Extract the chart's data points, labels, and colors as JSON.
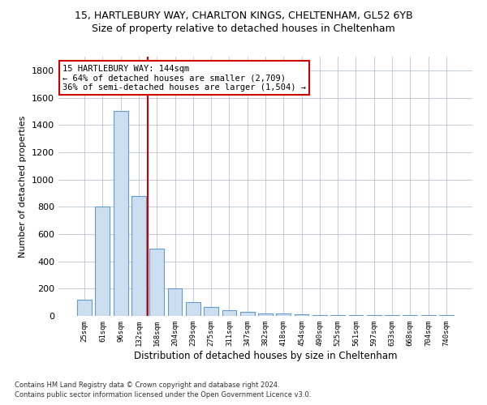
{
  "title1": "15, HARTLEBURY WAY, CHARLTON KINGS, CHELTENHAM, GL52 6YB",
  "title2": "Size of property relative to detached houses in Cheltenham",
  "xlabel": "Distribution of detached houses by size in Cheltenham",
  "ylabel": "Number of detached properties",
  "categories": [
    "25sqm",
    "61sqm",
    "96sqm",
    "132sqm",
    "168sqm",
    "204sqm",
    "239sqm",
    "275sqm",
    "311sqm",
    "347sqm",
    "382sqm",
    "418sqm",
    "454sqm",
    "490sqm",
    "525sqm",
    "561sqm",
    "597sqm",
    "633sqm",
    "668sqm",
    "704sqm",
    "740sqm"
  ],
  "values": [
    120,
    800,
    1500,
    880,
    490,
    200,
    100,
    65,
    40,
    30,
    20,
    15,
    10,
    7,
    5,
    5,
    5,
    5,
    5,
    5,
    5
  ],
  "bar_color": "#ccdff0",
  "bar_edge_color": "#6699cc",
  "vline_x": 3.5,
  "vline_color": "#cc0000",
  "annotation_line1": "15 HARTLEBURY WAY: 144sqm",
  "annotation_line2": "← 64% of detached houses are smaller (2,709)",
  "annotation_line3": "36% of semi-detached houses are larger (1,504) →",
  "annotation_box_color": "#ffffff",
  "annotation_box_edge": "#cc0000",
  "ylim": [
    0,
    1900
  ],
  "yticks": [
    0,
    200,
    400,
    600,
    800,
    1000,
    1200,
    1400,
    1600,
    1800
  ],
  "footer1": "Contains HM Land Registry data © Crown copyright and database right 2024.",
  "footer2": "Contains public sector information licensed under the Open Government Licence v3.0.",
  "bg_color": "#ffffff",
  "grid_color": "#b0b8d0",
  "title1_fontsize": 9,
  "title2_fontsize": 9,
  "bar_width": 0.8
}
